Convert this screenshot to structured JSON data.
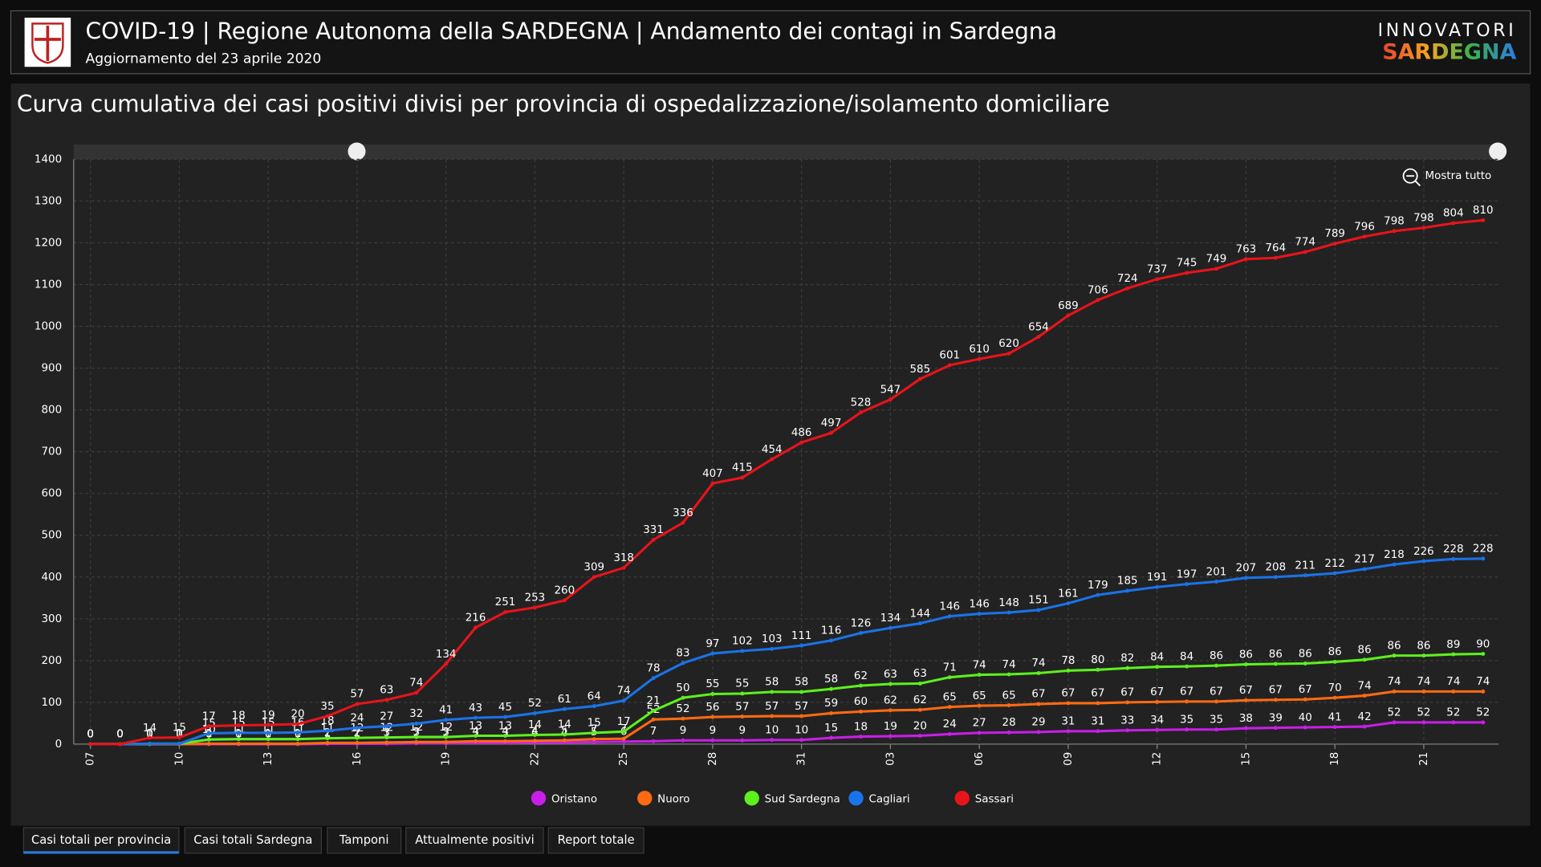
{
  "header": {
    "title": "COVID-19 | Regione Autonoma della SARDEGNA | Andamento dei contagi in Sardegna",
    "subtitle": "Aggiornamento del 23 aprile 2020",
    "logo_top": "INNOVATORI",
    "logo_bottom": "SARDEGNA"
  },
  "zoom_button": "Mostra tutto",
  "tabs": [
    "Casi totali per provincia",
    "Casi totali Sardegna",
    "Tamponi",
    "Attualmente positivi",
    "Report totale"
  ],
  "chart_data": {
    "type": "stacked-line",
    "title": "Curva cumulativa dei casi positivi divisi per provincia di ospedalizzazione/isolamento domiciliare",
    "categories": [
      "07",
      null,
      null,
      "10",
      null,
      null,
      "13",
      null,
      null,
      "16",
      null,
      null,
      "19",
      null,
      null,
      "22",
      null,
      null,
      "25",
      null,
      null,
      "28",
      null,
      null,
      "31",
      null,
      null,
      "03",
      null,
      null,
      "06",
      null,
      null,
      "09",
      null,
      null,
      "12",
      null,
      null,
      "15",
      null,
      null,
      "18",
      null,
      null,
      "21",
      null,
      null
    ],
    "ylim": [
      0,
      1400
    ],
    "yticks": [
      0,
      100,
      200,
      300,
      400,
      500,
      600,
      700,
      800,
      900,
      1000,
      1100,
      1200,
      1300,
      1400
    ],
    "grid": true,
    "series": [
      {
        "name": "Oristano",
        "color": "#c91ee8",
        "values": [
          0,
          0,
          0,
          0,
          0,
          0,
          0,
          0,
          1,
          1,
          1,
          2,
          2,
          3,
          3,
          4,
          4,
          5,
          6,
          7,
          9,
          9,
          9,
          10,
          10,
          15,
          18,
          19,
          20,
          24,
          27,
          28,
          29,
          31,
          31,
          33,
          34,
          35,
          35,
          38,
          39,
          40,
          41,
          42,
          52,
          52,
          52,
          52
        ]
      },
      {
        "name": "Nuoro",
        "color": "#ff6a13",
        "values": [
          0,
          0,
          0,
          0,
          1,
          1,
          1,
          1,
          2,
          2,
          3,
          3,
          3,
          4,
          4,
          4,
          5,
          7,
          7,
          52,
          52,
          56,
          57,
          57,
          57,
          59,
          60,
          62,
          62,
          65,
          65,
          65,
          67,
          67,
          67,
          67,
          67,
          67,
          67,
          67,
          67,
          67,
          70,
          74,
          74,
          74,
          74,
          74
        ]
      },
      {
        "name": "Sud Sardegna",
        "color": "#5ef01d",
        "values": [
          0,
          0,
          1,
          1,
          10,
          11,
          11,
          11,
          11,
          12,
          12,
          12,
          12,
          13,
          13,
          14,
          14,
          15,
          17,
          21,
          50,
          55,
          55,
          58,
          58,
          58,
          62,
          63,
          63,
          71,
          74,
          74,
          74,
          78,
          80,
          82,
          84,
          84,
          86,
          86,
          86,
          86,
          86,
          86,
          86,
          86,
          89,
          90
        ]
      },
      {
        "name": "Cagliari",
        "color": "#1a73e8",
        "values": [
          0,
          0,
          0,
          0,
          15,
          15,
          15,
          16,
          18,
          24,
          27,
          32,
          41,
          43,
          45,
          52,
          61,
          64,
          74,
          78,
          83,
          97,
          102,
          103,
          111,
          116,
          126,
          134,
          144,
          146,
          146,
          148,
          151,
          161,
          179,
          185,
          191,
          197,
          201,
          207,
          208,
          211,
          212,
          217,
          218,
          226,
          228,
          228
        ]
      },
      {
        "name": "Sassari",
        "color": "#e8141b",
        "values": [
          0,
          0,
          14,
          15,
          17,
          18,
          19,
          20,
          35,
          57,
          63,
          74,
          134,
          216,
          251,
          253,
          260,
          309,
          318,
          331,
          336,
          407,
          415,
          454,
          486,
          497,
          528,
          547,
          585,
          601,
          610,
          620,
          654,
          689,
          706,
          724,
          737,
          745,
          749,
          763,
          764,
          774,
          789,
          796,
          798,
          798,
          804,
          810
        ]
      }
    ]
  }
}
